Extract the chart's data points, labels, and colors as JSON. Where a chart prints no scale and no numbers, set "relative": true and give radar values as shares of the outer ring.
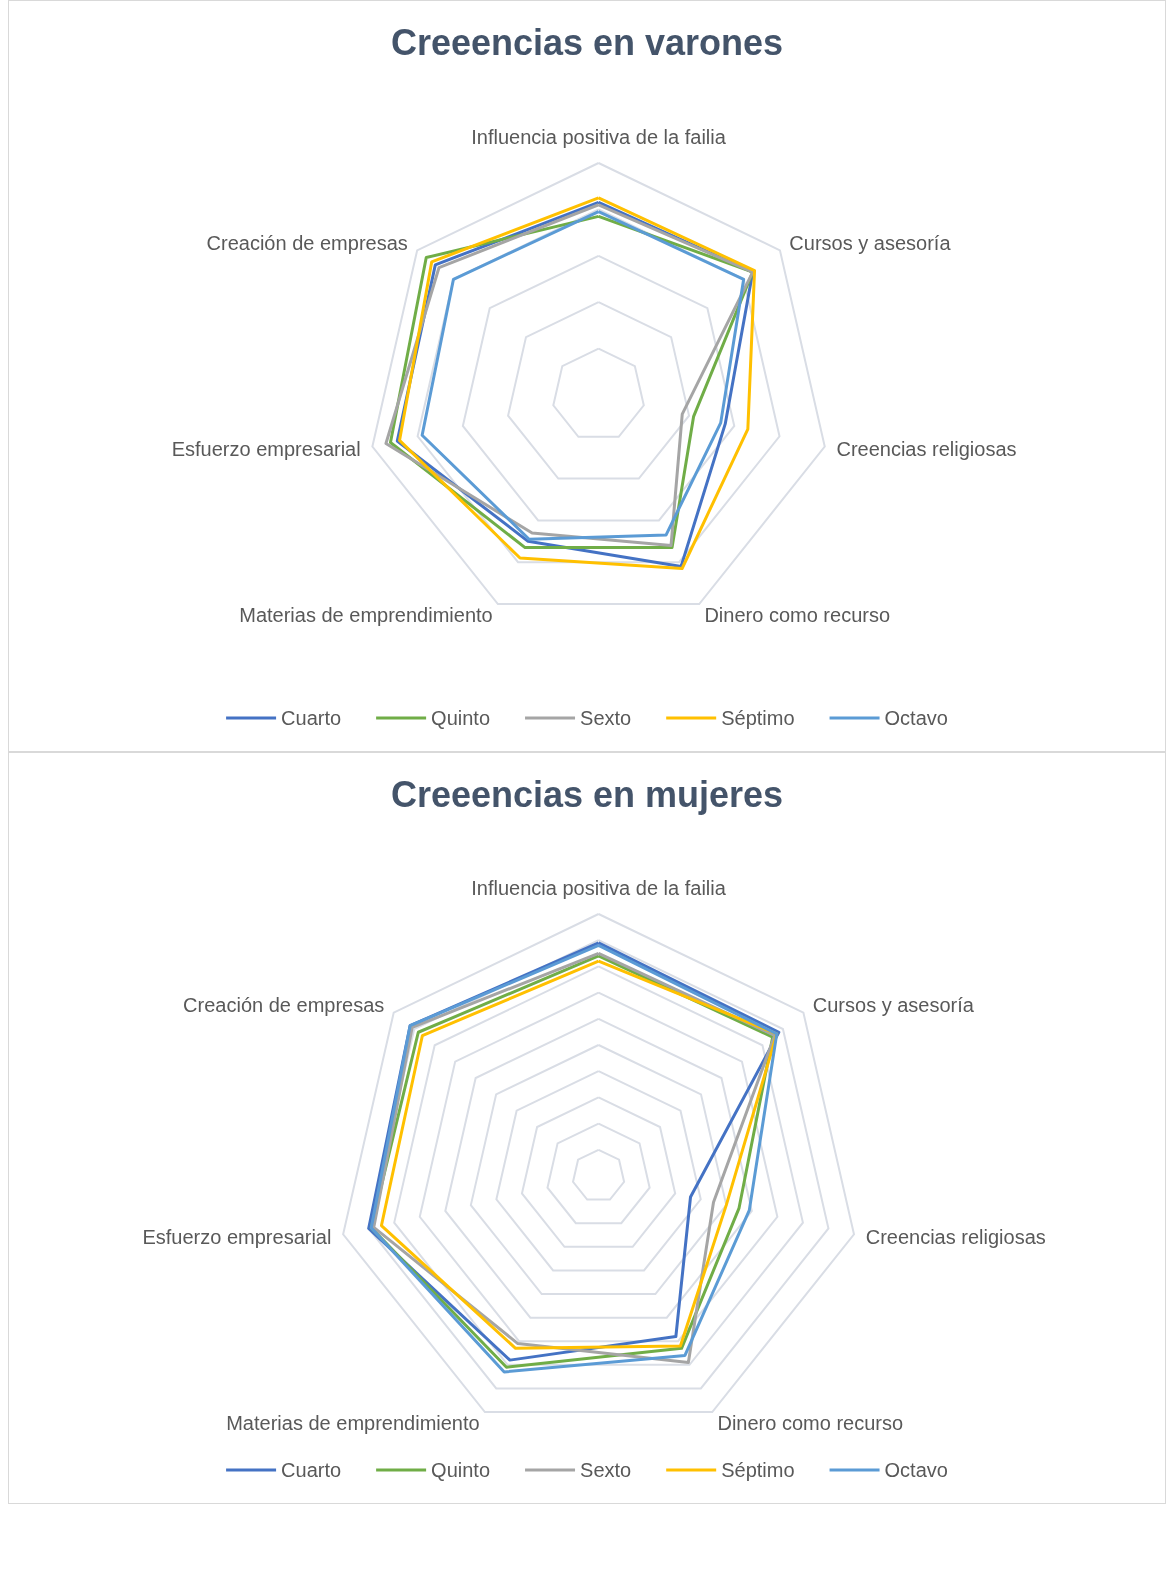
{
  "chart_data": [
    {
      "type": "radar",
      "title": "Creeencias en varones",
      "relative": true,
      "grid": true,
      "legend": "bottom",
      "categories": [
        "Influencia positiva de la failia",
        "Cursos y asesoría",
        "Creencias religiosas",
        "Dinero como recurso",
        "Materias de emprendimiento",
        "Esfuerzo empresarial",
        "Creación de empresas"
      ],
      "series": [
        {
          "name": "Cuarto",
          "color": "#4472c4",
          "values": [
            0.83,
            0.85,
            0.56,
            0.82,
            0.7,
            0.89,
            0.9
          ]
        },
        {
          "name": "Quinto",
          "color": "#70ad47",
          "values": [
            0.77,
            0.85,
            0.42,
            0.73,
            0.73,
            0.92,
            0.95
          ]
        },
        {
          "name": "Sexto",
          "color": "#a5a5a5",
          "values": [
            0.82,
            0.85,
            0.37,
            0.72,
            0.66,
            0.94,
            0.88
          ]
        },
        {
          "name": "Séptimo",
          "color": "#ffc000",
          "values": [
            0.85,
            0.86,
            0.66,
            0.83,
            0.78,
            0.88,
            0.92
          ]
        },
        {
          "name": "Octavo",
          "color": "#5b9bd5",
          "values": [
            0.79,
            0.8,
            0.54,
            0.67,
            0.69,
            0.78,
            0.8
          ]
        }
      ]
    },
    {
      "type": "radar",
      "title": "Creeencias en mujeres",
      "relative": true,
      "grid": true,
      "legend": "bottom",
      "categories": [
        "Influencia positiva de la failia",
        "Cursos y asesoría",
        "Creencias religiosas",
        "Dinero como recurso",
        "Materias de emprendimiento",
        "Esfuerzo empresarial",
        "Creación de empresas"
      ],
      "series": [
        {
          "name": "Cuarto",
          "color": "#4472c4",
          "values": [
            0.89,
            0.88,
            0.36,
            0.68,
            0.78,
            0.9,
            0.92
          ]
        },
        {
          "name": "Quinto",
          "color": "#70ad47",
          "values": [
            0.84,
            0.85,
            0.55,
            0.73,
            0.81,
            0.89,
            0.88
          ]
        },
        {
          "name": "Sexto",
          "color": "#a5a5a5",
          "values": [
            0.85,
            0.86,
            0.45,
            0.79,
            0.71,
            0.88,
            0.91
          ]
        },
        {
          "name": "Séptimo",
          "color": "#ffc000",
          "values": [
            0.82,
            0.87,
            0.5,
            0.72,
            0.73,
            0.85,
            0.86
          ]
        },
        {
          "name": "Octavo",
          "color": "#5b9bd5",
          "values": [
            0.88,
            0.87,
            0.59,
            0.76,
            0.83,
            0.89,
            0.92
          ]
        }
      ]
    }
  ]
}
